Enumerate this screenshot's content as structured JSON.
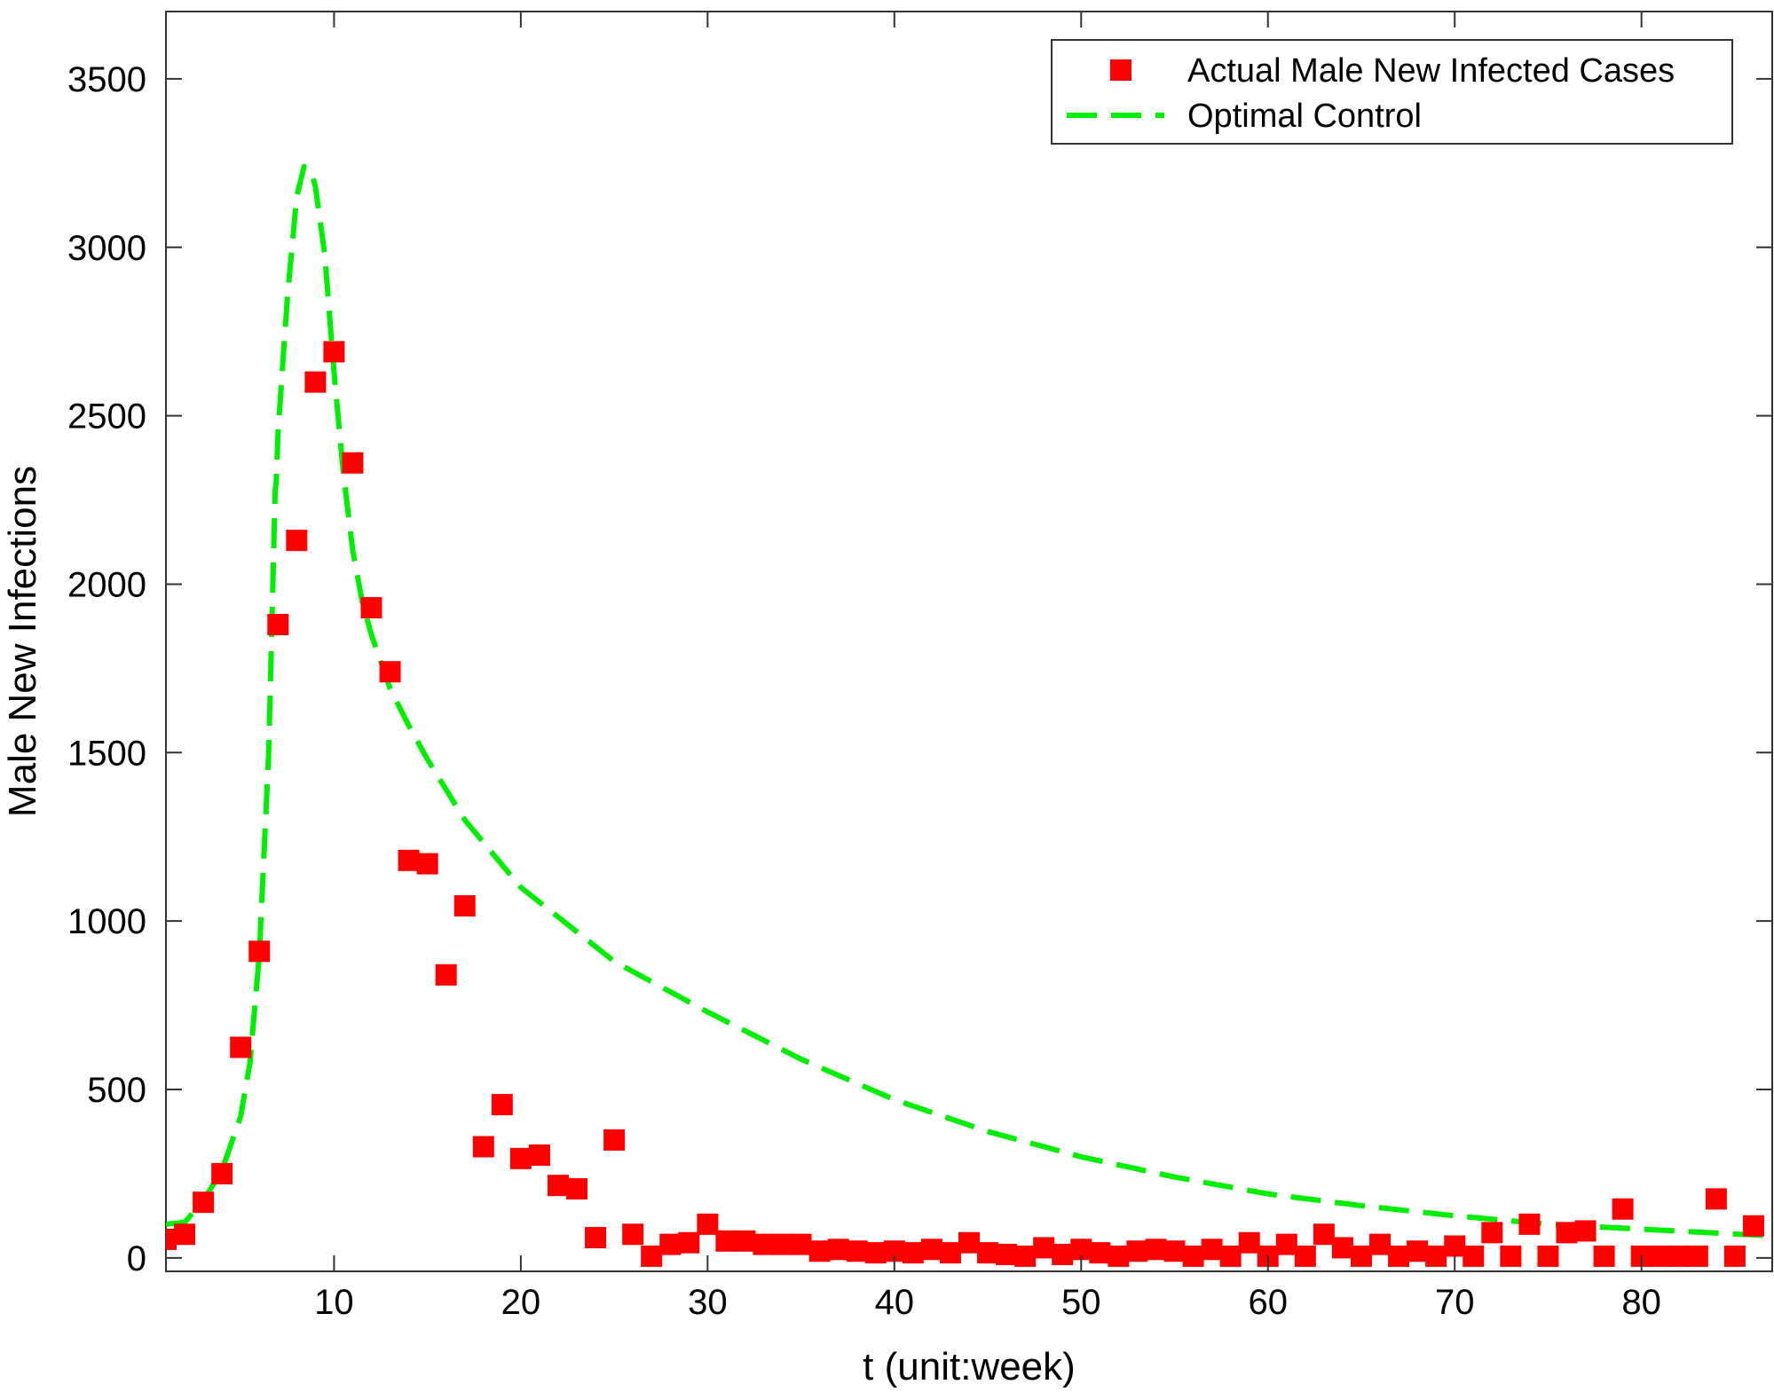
{
  "chart_data": {
    "type": "scatter+line",
    "title": "",
    "xlabel": "t (unit:week)",
    "ylabel": "Male New Infections",
    "xlim": [
      1,
      87
    ],
    "ylim": [
      -40,
      3700
    ],
    "xticks": [
      10,
      20,
      30,
      40,
      50,
      60,
      70,
      80
    ],
    "yticks": [
      0,
      500,
      1000,
      1500,
      2000,
      2500,
      3000,
      3500
    ],
    "grid": false,
    "legend_position": "top-right",
    "colors": {
      "actual": "#ff0000",
      "control": "#00ee00"
    },
    "legend": {
      "actual": "Actual Male New Infected Cases",
      "control": "Optimal Control"
    },
    "series": [
      {
        "name": "Actual Male New Infected Cases",
        "kind": "scatter",
        "marker": "square",
        "points": [
          [
            1,
            55
          ],
          [
            2,
            70
          ],
          [
            3,
            165
          ],
          [
            4,
            250
          ],
          [
            5,
            625
          ],
          [
            6,
            910
          ],
          [
            7,
            1880
          ],
          [
            8,
            2130
          ],
          [
            9,
            2600
          ],
          [
            10,
            2690
          ],
          [
            11,
            2360
          ],
          [
            12,
            1930
          ],
          [
            13,
            1740
          ],
          [
            14,
            1180
          ],
          [
            15,
            1170
          ],
          [
            16,
            840
          ],
          [
            17,
            1045
          ],
          [
            18,
            330
          ],
          [
            19,
            455
          ],
          [
            20,
            295
          ],
          [
            21,
            305
          ],
          [
            22,
            215
          ],
          [
            23,
            205
          ],
          [
            24,
            60
          ],
          [
            25,
            350
          ],
          [
            26,
            70
          ],
          [
            27,
            5
          ],
          [
            28,
            40
          ],
          [
            29,
            45
          ],
          [
            30,
            100
          ],
          [
            31,
            50
          ],
          [
            32,
            50
          ],
          [
            33,
            40
          ],
          [
            34,
            40
          ],
          [
            35,
            40
          ],
          [
            36,
            20
          ],
          [
            37,
            25
          ],
          [
            38,
            20
          ],
          [
            39,
            15
          ],
          [
            40,
            20
          ],
          [
            41,
            15
          ],
          [
            42,
            25
          ],
          [
            43,
            15
          ],
          [
            44,
            45
          ],
          [
            45,
            15
          ],
          [
            46,
            10
          ],
          [
            47,
            5
          ],
          [
            48,
            30
          ],
          [
            49,
            10
          ],
          [
            50,
            25
          ],
          [
            51,
            15
          ],
          [
            52,
            5
          ],
          [
            53,
            20
          ],
          [
            54,
            25
          ],
          [
            55,
            20
          ],
          [
            56,
            5
          ],
          [
            57,
            25
          ],
          [
            58,
            5
          ],
          [
            59,
            45
          ],
          [
            60,
            5
          ],
          [
            61,
            40
          ],
          [
            62,
            5
          ],
          [
            63,
            70
          ],
          [
            64,
            30
          ],
          [
            65,
            5
          ],
          [
            66,
            40
          ],
          [
            67,
            5
          ],
          [
            68,
            20
          ],
          [
            69,
            5
          ],
          [
            70,
            35
          ],
          [
            71,
            5
          ],
          [
            72,
            75
          ],
          [
            73,
            5
          ],
          [
            74,
            100
          ],
          [
            75,
            5
          ],
          [
            76,
            75
          ],
          [
            77,
            80
          ],
          [
            78,
            5
          ],
          [
            79,
            145
          ],
          [
            80,
            5
          ],
          [
            81,
            5
          ],
          [
            82,
            5
          ],
          [
            83,
            5
          ],
          [
            84,
            175
          ],
          [
            85,
            5
          ],
          [
            86,
            95
          ]
        ]
      },
      {
        "name": "Optimal Control",
        "kind": "line",
        "style": "dashed",
        "points": [
          [
            1,
            100
          ],
          [
            2,
            105
          ],
          [
            3,
            170
          ],
          [
            4,
            260
          ],
          [
            5,
            420
          ],
          [
            5.5,
            580
          ],
          [
            6,
            900
          ],
          [
            6.5,
            1500
          ],
          [
            6.85,
            2280
          ],
          [
            6.9,
            2300
          ],
          [
            7,
            2450
          ],
          [
            7.5,
            2850
          ],
          [
            8,
            3150
          ],
          [
            8.4,
            3240
          ],
          [
            8.8,
            3220
          ],
          [
            9,
            3180
          ],
          [
            9.5,
            2980
          ],
          [
            10,
            2630
          ],
          [
            10.5,
            2330
          ],
          [
            11,
            2100
          ],
          [
            11.5,
            1950
          ],
          [
            12,
            1850
          ],
          [
            13,
            1690
          ],
          [
            14,
            1580
          ],
          [
            15,
            1480
          ],
          [
            17,
            1300
          ],
          [
            20,
            1100
          ],
          [
            25,
            880
          ],
          [
            30,
            730
          ],
          [
            35,
            590
          ],
          [
            40,
            470
          ],
          [
            45,
            375
          ],
          [
            50,
            300
          ],
          [
            55,
            240
          ],
          [
            60,
            190
          ],
          [
            65,
            155
          ],
          [
            70,
            125
          ],
          [
            75,
            100
          ],
          [
            80,
            85
          ],
          [
            87,
            65
          ]
        ]
      }
    ]
  }
}
